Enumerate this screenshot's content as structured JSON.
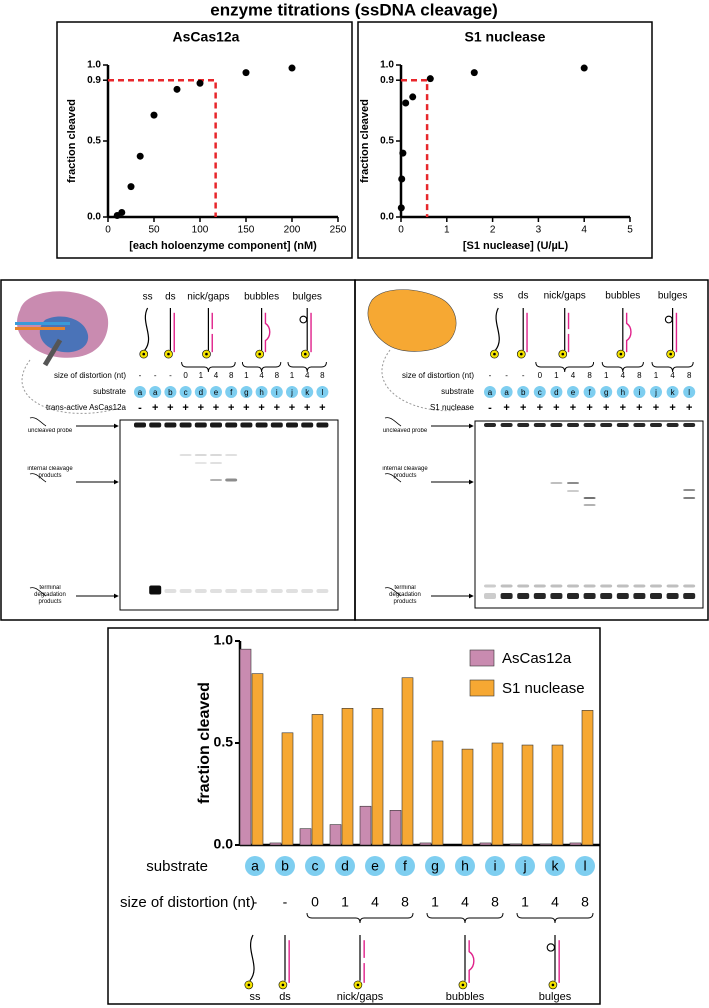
{
  "title": "enzyme titrations (ssDNA cleavage)",
  "chart_data": [
    {
      "type": "scatter",
      "title": "AsCas12a",
      "x": [
        10,
        15,
        25,
        35,
        50,
        75,
        100,
        150,
        200
      ],
      "values": [
        0.01,
        0.03,
        0.2,
        0.4,
        0.67,
        0.84,
        0.88,
        0.95,
        0.98
      ],
      "color": "#000000",
      "xlabel": "[each holoenzyme component] (nM)",
      "ylabel": "fraction cleaved",
      "xlim": [
        0,
        250
      ],
      "ylim": [
        0,
        1
      ],
      "xticks": [
        0,
        50,
        100,
        150,
        200,
        250
      ],
      "yticks": [
        {
          "value": 0,
          "label": "0.0"
        },
        0.5,
        0.9,
        {
          "value": 1,
          "label": "1.0"
        }
      ],
      "threshold": {
        "x": 117,
        "y": 0.9,
        "color": "#e8262b"
      }
    },
    {
      "type": "scatter",
      "title": "S1 nuclease",
      "x": [
        0.0066,
        0.016,
        0.041,
        0.1024,
        0.256,
        0.64,
        1.6,
        4
      ],
      "values": [
        0.06,
        0.25,
        0.42,
        0.75,
        0.79,
        0.91,
        0.95,
        0.98
      ],
      "color": "#000000",
      "xlabel": "[S1 nuclease] (U/µL)",
      "ylabel": "fraction cleaved",
      "xlim": [
        0,
        5
      ],
      "ylim": [
        0,
        1
      ],
      "xticks": [
        0,
        1,
        2,
        3,
        4,
        5
      ],
      "yticks": [
        {
          "value": 0,
          "label": "0.0"
        },
        0.5,
        0.9,
        {
          "value": 1,
          "label": "1.0"
        }
      ],
      "threshold": {
        "x": 0.57,
        "y": 0.9,
        "color": "#e8262b"
      }
    },
    {
      "type": "bar",
      "ylabel": "fraction cleaved",
      "categories": [
        "a",
        "b",
        "c",
        "d",
        "e",
        "f",
        "g",
        "h",
        "i",
        "j",
        "k",
        "l"
      ],
      "series": [
        {
          "name": "AsCas12a",
          "color": "#c98bb0",
          "values": [
            0.96,
            0.01,
            0.08,
            0.1,
            0.19,
            0.17,
            0.01,
            0,
            0.01,
            0.005,
            0.005,
            0.01
          ]
        },
        {
          "name": "S1 nuclease",
          "color": "#f6a833",
          "values": [
            0.84,
            0.55,
            0.64,
            0.67,
            0.67,
            0.82,
            0.51,
            0.47,
            0.5,
            0.49,
            0.49,
            0.66
          ]
        }
      ],
      "ylim": [
        0,
        1
      ],
      "yticks": [
        {
          "value": 0,
          "label": "0.0"
        },
        0.5,
        {
          "value": 1,
          "label": "1.0"
        }
      ],
      "legend": "top-right",
      "category_label": "substrate",
      "distortion_label": "size of distortion (nt)",
      "distortions": [
        "-",
        "-",
        "0",
        "1",
        "4",
        "8",
        "1",
        "4",
        "8",
        "1",
        "4",
        "8"
      ],
      "groups": [
        "ss",
        "ds",
        "nick/gaps",
        "bubbles",
        "bulges"
      ]
    }
  ],
  "gels": [
    {
      "headers": [
        "ss",
        "ds",
        "nick/gaps",
        "bubbles",
        "bulges"
      ],
      "distortion_label": "size of distortion (nt)",
      "distortions": [
        "-",
        "-",
        "-",
        "0",
        "1",
        "4",
        "8",
        "1",
        "4",
        "8",
        "1",
        "4",
        "8"
      ],
      "substrate_label": "substrate",
      "substrates": [
        "a",
        "a",
        "b",
        "c",
        "d",
        "e",
        "f",
        "g",
        "h",
        "i",
        "j",
        "k",
        "l"
      ],
      "enzyme_label": "trans-active AsCas12a",
      "enzyme": [
        "-",
        "+",
        "+",
        "+",
        "+",
        "+",
        "+",
        "+",
        "+",
        "+",
        "+",
        "+",
        "+"
      ],
      "bands": [
        "uncleaved probe",
        "internal cleavage products",
        "terminal degradation products"
      ]
    },
    {
      "headers": [
        "ss",
        "ds",
        "nick/gaps",
        "bubbles",
        "bulges"
      ],
      "distortion_label": "size of distortion (nt)",
      "distortions": [
        "-",
        "-",
        "-",
        "0",
        "1",
        "4",
        "8",
        "1",
        "4",
        "8",
        "1",
        "4",
        "8"
      ],
      "substrate_label": "substrate",
      "substrates": [
        "a",
        "a",
        "b",
        "c",
        "d",
        "e",
        "f",
        "g",
        "h",
        "i",
        "j",
        "k",
        "l"
      ],
      "enzyme_label": "S1 nuclease",
      "enzyme": [
        "-",
        "+",
        "+",
        "+",
        "+",
        "+",
        "+",
        "+",
        "+",
        "+",
        "+",
        "+",
        "+"
      ],
      "bands": [
        "uncleaved probe",
        "internal cleavage products",
        "terminal degradation products"
      ]
    }
  ]
}
